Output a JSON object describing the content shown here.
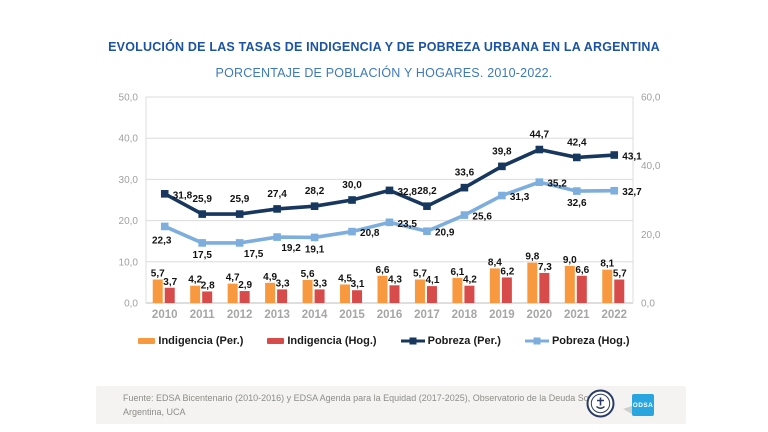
{
  "title": "EVOLUCIÓN DE LAS TASAS DE INDIGENCIA Y DE POBREZA URBANA EN LA ARGENTINA",
  "subtitle": "PORCENTAJE DE POBLACIÓN Y HOGARES. 2010-2022.",
  "chart_data": {
    "type": "combo-bar-line",
    "categories": [
      "2010",
      "2011",
      "2012",
      "2013",
      "2014",
      "2015",
      "2016",
      "2017",
      "2018",
      "2019",
      "2020",
      "2021",
      "2022"
    ],
    "left_axis": {
      "min": 0,
      "max": 50,
      "ticks": [
        0,
        10,
        20,
        30,
        40,
        50
      ],
      "number_format": "decimal-comma"
    },
    "right_axis": {
      "min": 0,
      "max": 60,
      "ticks": [
        0,
        20,
        40,
        60
      ],
      "number_format": "decimal-comma"
    },
    "grid": true,
    "legend_position": "bottom",
    "series": [
      {
        "name": "Indigencia (Per.)",
        "type": "bar",
        "axis": "left",
        "color": "#f8993f",
        "values": [
          5.7,
          4.2,
          4.7,
          4.9,
          5.6,
          4.5,
          6.6,
          5.7,
          6.1,
          8.4,
          9.8,
          9.0,
          8.1
        ]
      },
      {
        "name": "Indigencia (Hog.)",
        "type": "bar",
        "axis": "left",
        "color": "#d84b4b",
        "values": [
          3.7,
          2.8,
          2.9,
          3.3,
          3.3,
          3.1,
          4.3,
          4.1,
          4.2,
          6.2,
          7.3,
          6.6,
          5.7
        ]
      },
      {
        "name": "Pobreza (Per.)",
        "type": "line",
        "axis": "right",
        "color": "#17375e",
        "values": [
          31.8,
          25.9,
          25.9,
          27.4,
          28.2,
          30.0,
          32.8,
          28.2,
          33.6,
          39.8,
          44.7,
          42.4,
          43.1
        ],
        "label_pos": [
          "right",
          "above",
          "above",
          "above",
          "above",
          "above",
          "right",
          "above",
          "above",
          "above",
          "above",
          "above",
          "right"
        ]
      },
      {
        "name": "Pobreza (Hog.)",
        "type": "line",
        "axis": "right",
        "color": "#7eaedd",
        "values": [
          22.3,
          17.5,
          17.5,
          19.2,
          19.1,
          20.8,
          23.5,
          20.9,
          25.6,
          31.3,
          35.2,
          32.6,
          32.7
        ],
        "label_pos": [
          "belowleft",
          "below",
          "belowright",
          "belowright",
          "below",
          "right",
          "right",
          "right",
          "right",
          "right",
          "right",
          "below",
          "right"
        ]
      }
    ]
  },
  "footer": {
    "source_text": "Fuente: EDSA Bicentenario (2010-2016) y EDSA Agenda para la Equidad (2017-2025), Observatorio de la Deuda Social Argentina, UCA",
    "logos": [
      "uca-seal",
      "odsa-badge"
    ],
    "odsa_label": "ODSA"
  }
}
